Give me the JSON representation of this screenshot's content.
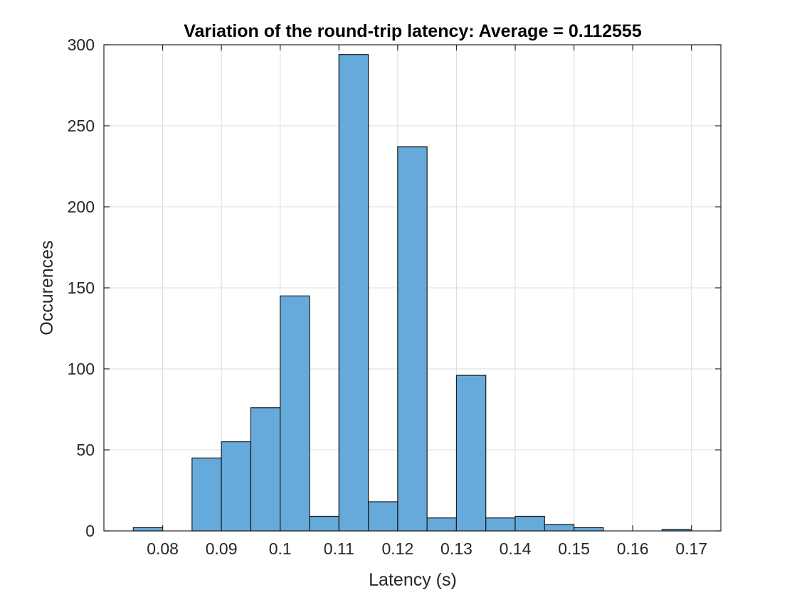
{
  "chart_data": {
    "type": "bar",
    "title": "Variation of the round-trip latency: Average = 0.112555",
    "xlabel": "Latency (s)",
    "ylabel": "Occurences",
    "xlim": [
      0.07,
      0.175
    ],
    "ylim": [
      0,
      300
    ],
    "xticks": [
      0.08,
      0.09,
      0.1,
      0.11,
      0.12,
      0.13,
      0.14,
      0.15,
      0.16,
      0.17
    ],
    "xtick_labels": [
      "0.08",
      "0.09",
      "0.1",
      "0.11",
      "0.12",
      "0.13",
      "0.14",
      "0.15",
      "0.16",
      "0.17"
    ],
    "yticks": [
      0,
      50,
      100,
      150,
      200,
      250,
      300
    ],
    "ytick_labels": [
      "0",
      "50",
      "100",
      "150",
      "200",
      "250",
      "300"
    ],
    "grid": true,
    "bin_width": 0.005,
    "bin_edges_start": 0.075,
    "values": [
      2,
      0,
      45,
      55,
      76,
      145,
      9,
      294,
      18,
      237,
      8,
      96,
      8,
      9,
      4,
      2,
      0,
      0,
      1
    ],
    "bar_color": "#66aadb",
    "edge_color": "#1a1a1a"
  }
}
